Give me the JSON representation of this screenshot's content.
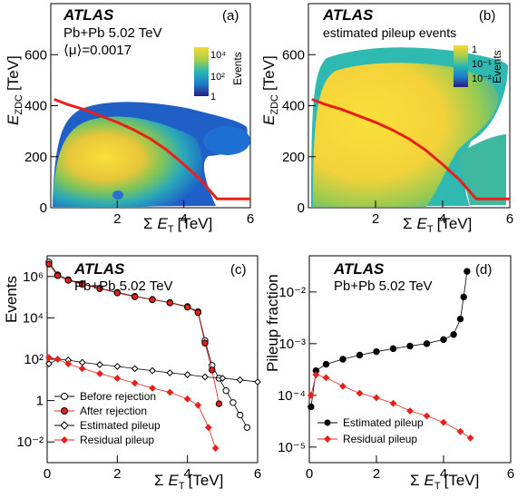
{
  "panels": {
    "a": {
      "label": "(a)",
      "atlas": "ATLAS",
      "line1": "Pb+Pb 5.02 TeV",
      "line2": "⟨μ⟩=0.0017",
      "zlabel": "Events",
      "zticks": [
        "10⁴",
        "10²",
        "1"
      ],
      "ylabel_main": "E",
      "ylabel_sub": "ZDC",
      "ylabel_unit": "[TeV]",
      "xlabel_sigma": "Σ",
      "xlabel_main": "E",
      "xlabel_sub": "T",
      "xlabel_unit": "[TeV]"
    },
    "b": {
      "label": "(b)",
      "atlas": "ATLAS",
      "line1": "estimated pileup events",
      "zlabel": "Events",
      "zticks": [
        "1",
        "10⁻¹",
        "10⁻²"
      ],
      "ylabel_main": "E",
      "ylabel_sub": "ZDC",
      "ylabel_unit": "[TeV]",
      "xlabel_sigma": "Σ",
      "xlabel_main": "E",
      "xlabel_sub": "T",
      "xlabel_unit": "[TeV]"
    },
    "c": {
      "label": "(c)",
      "atlas": "ATLAS",
      "line1": "Pb+Pb 5.02 TeV",
      "ylabel": "Events",
      "xlabel_sigma": "Σ",
      "xlabel_main": "E",
      "xlabel_sub": "T",
      "xlabel_unit": "[TeV]",
      "legend": [
        "Before rejection",
        "After rejection",
        "Estimated pileup",
        "Residual  pileup"
      ]
    },
    "d": {
      "label": "(d)",
      "atlas": "ATLAS",
      "line1": "Pb+Pb 5.02 TeV",
      "ylabel": "Pileup fraction",
      "xlabel_sigma": "Σ",
      "xlabel_main": "E",
      "xlabel_sub": "T",
      "xlabel_unit": "[TeV]",
      "legend": [
        "Estimated pileup",
        "Residual pileup"
      ]
    }
  },
  "colors": {
    "cut": "#e8201c",
    "marker_red": "#e8201c",
    "marker_black": "#000000"
  },
  "chart_data": [
    {
      "type": "heatmap",
      "panel": "a",
      "xlim": [
        0,
        6
      ],
      "ylim": [
        0,
        800
      ],
      "xticks": [
        "2",
        "4",
        "6"
      ],
      "yticks": [
        "0",
        "200",
        "400",
        "600"
      ],
      "cut_line": {
        "x": [
          0.1,
          0.5,
          1,
          1.5,
          2,
          2.5,
          3,
          3.5,
          4,
          4.5,
          5,
          6
        ],
        "y": [
          425,
          405,
          385,
          360,
          335,
          305,
          270,
          225,
          170,
          110,
          35,
          35
        ]
      }
    },
    {
      "type": "heatmap",
      "panel": "b",
      "xlim": [
        0,
        6
      ],
      "ylim": [
        0,
        800
      ],
      "xticks": [
        "2",
        "4",
        "6"
      ],
      "yticks": [
        "0",
        "200",
        "400",
        "600"
      ],
      "cut_line": {
        "x": [
          0.1,
          0.5,
          1,
          1.5,
          2,
          2.5,
          3,
          3.5,
          4,
          4.5,
          5,
          6
        ],
        "y": [
          425,
          405,
          385,
          360,
          335,
          305,
          270,
          225,
          170,
          110,
          35,
          35
        ]
      }
    },
    {
      "type": "scatter",
      "panel": "c",
      "xlim": [
        0,
        6
      ],
      "log_y": true,
      "ylim": [
        0.001,
        10000000
      ],
      "xticks": [
        "0",
        "2",
        "4",
        "6"
      ],
      "yticks": [
        "10⁶",
        "10⁴",
        "10²",
        "1",
        "10⁻²"
      ],
      "series": [
        {
          "name": "Before rejection",
          "x": [
            0.05,
            0.3,
            0.6,
            1,
            1.5,
            2,
            2.5,
            3,
            3.5,
            4,
            4.3,
            4.5,
            4.7,
            4.9,
            5.1,
            5.3,
            5.5,
            5.7
          ],
          "y": [
            5000000,
            1200000,
            700000,
            450000,
            270000,
            170000,
            110000,
            78000,
            55000,
            35000,
            20000,
            800,
            50,
            12,
            3,
            0.8,
            0.2,
            0.05
          ]
        },
        {
          "name": "After rejection",
          "x": [
            0.05,
            0.3,
            0.6,
            1,
            1.5,
            2,
            2.5,
            3,
            3.5,
            4,
            4.3,
            4.5,
            4.7,
            4.9
          ],
          "y": [
            4000000,
            1100000,
            650000,
            420000,
            260000,
            160000,
            105000,
            75000,
            53000,
            33000,
            18000,
            600,
            30,
            0.7
          ]
        },
        {
          "name": "Estimated pileup",
          "x": [
            0.05,
            0.3,
            0.6,
            1,
            1.5,
            2,
            2.5,
            3,
            3.5,
            4,
            4.5,
            5,
            5.5,
            6
          ],
          "y": [
            60,
            100,
            90,
            70,
            55,
            45,
            35,
            28,
            22,
            18,
            14,
            12,
            10,
            8
          ]
        },
        {
          "name": "Residual  pileup",
          "x": [
            0.05,
            0.3,
            0.6,
            1,
            1.5,
            2,
            2.5,
            3,
            3.5,
            4,
            4.3,
            4.6,
            4.8
          ],
          "y": [
            120,
            100,
            60,
            35,
            20,
            12,
            7,
            4,
            2.5,
            1.2,
            0.6,
            0.05,
            0.005
          ]
        }
      ]
    },
    {
      "type": "scatter",
      "panel": "d",
      "xlim": [
        0,
        6
      ],
      "log_y": true,
      "ylim": [
        5e-06,
        0.05
      ],
      "xticks": [
        "0",
        "2",
        "4",
        "6"
      ],
      "yticks": [
        "10⁻²",
        "10⁻³",
        "10⁻⁴",
        "10⁻⁵"
      ],
      "series": [
        {
          "name": "Estimated pileup",
          "x": [
            0.05,
            0.2,
            0.5,
            1,
            1.5,
            2,
            2.5,
            3,
            3.5,
            4,
            4.3,
            4.5,
            4.6,
            4.7
          ],
          "y": [
            6e-05,
            0.0003,
            0.0004,
            0.0005,
            0.0006,
            0.0007,
            0.0008,
            0.0009,
            0.001,
            0.0012,
            0.0015,
            0.003,
            0.008,
            0.025
          ]
        },
        {
          "name": "Residual pileup",
          "x": [
            0.05,
            0.2,
            0.5,
            1,
            1.5,
            2,
            2.5,
            3,
            3.5,
            4,
            4.5,
            4.8
          ],
          "y": [
            0.0001,
            0.00025,
            0.00022,
            0.00015,
            0.00011,
            9e-05,
            7e-05,
            5e-05,
            4e-05,
            3e-05,
            2e-05,
            1.5e-05
          ]
        }
      ]
    }
  ]
}
